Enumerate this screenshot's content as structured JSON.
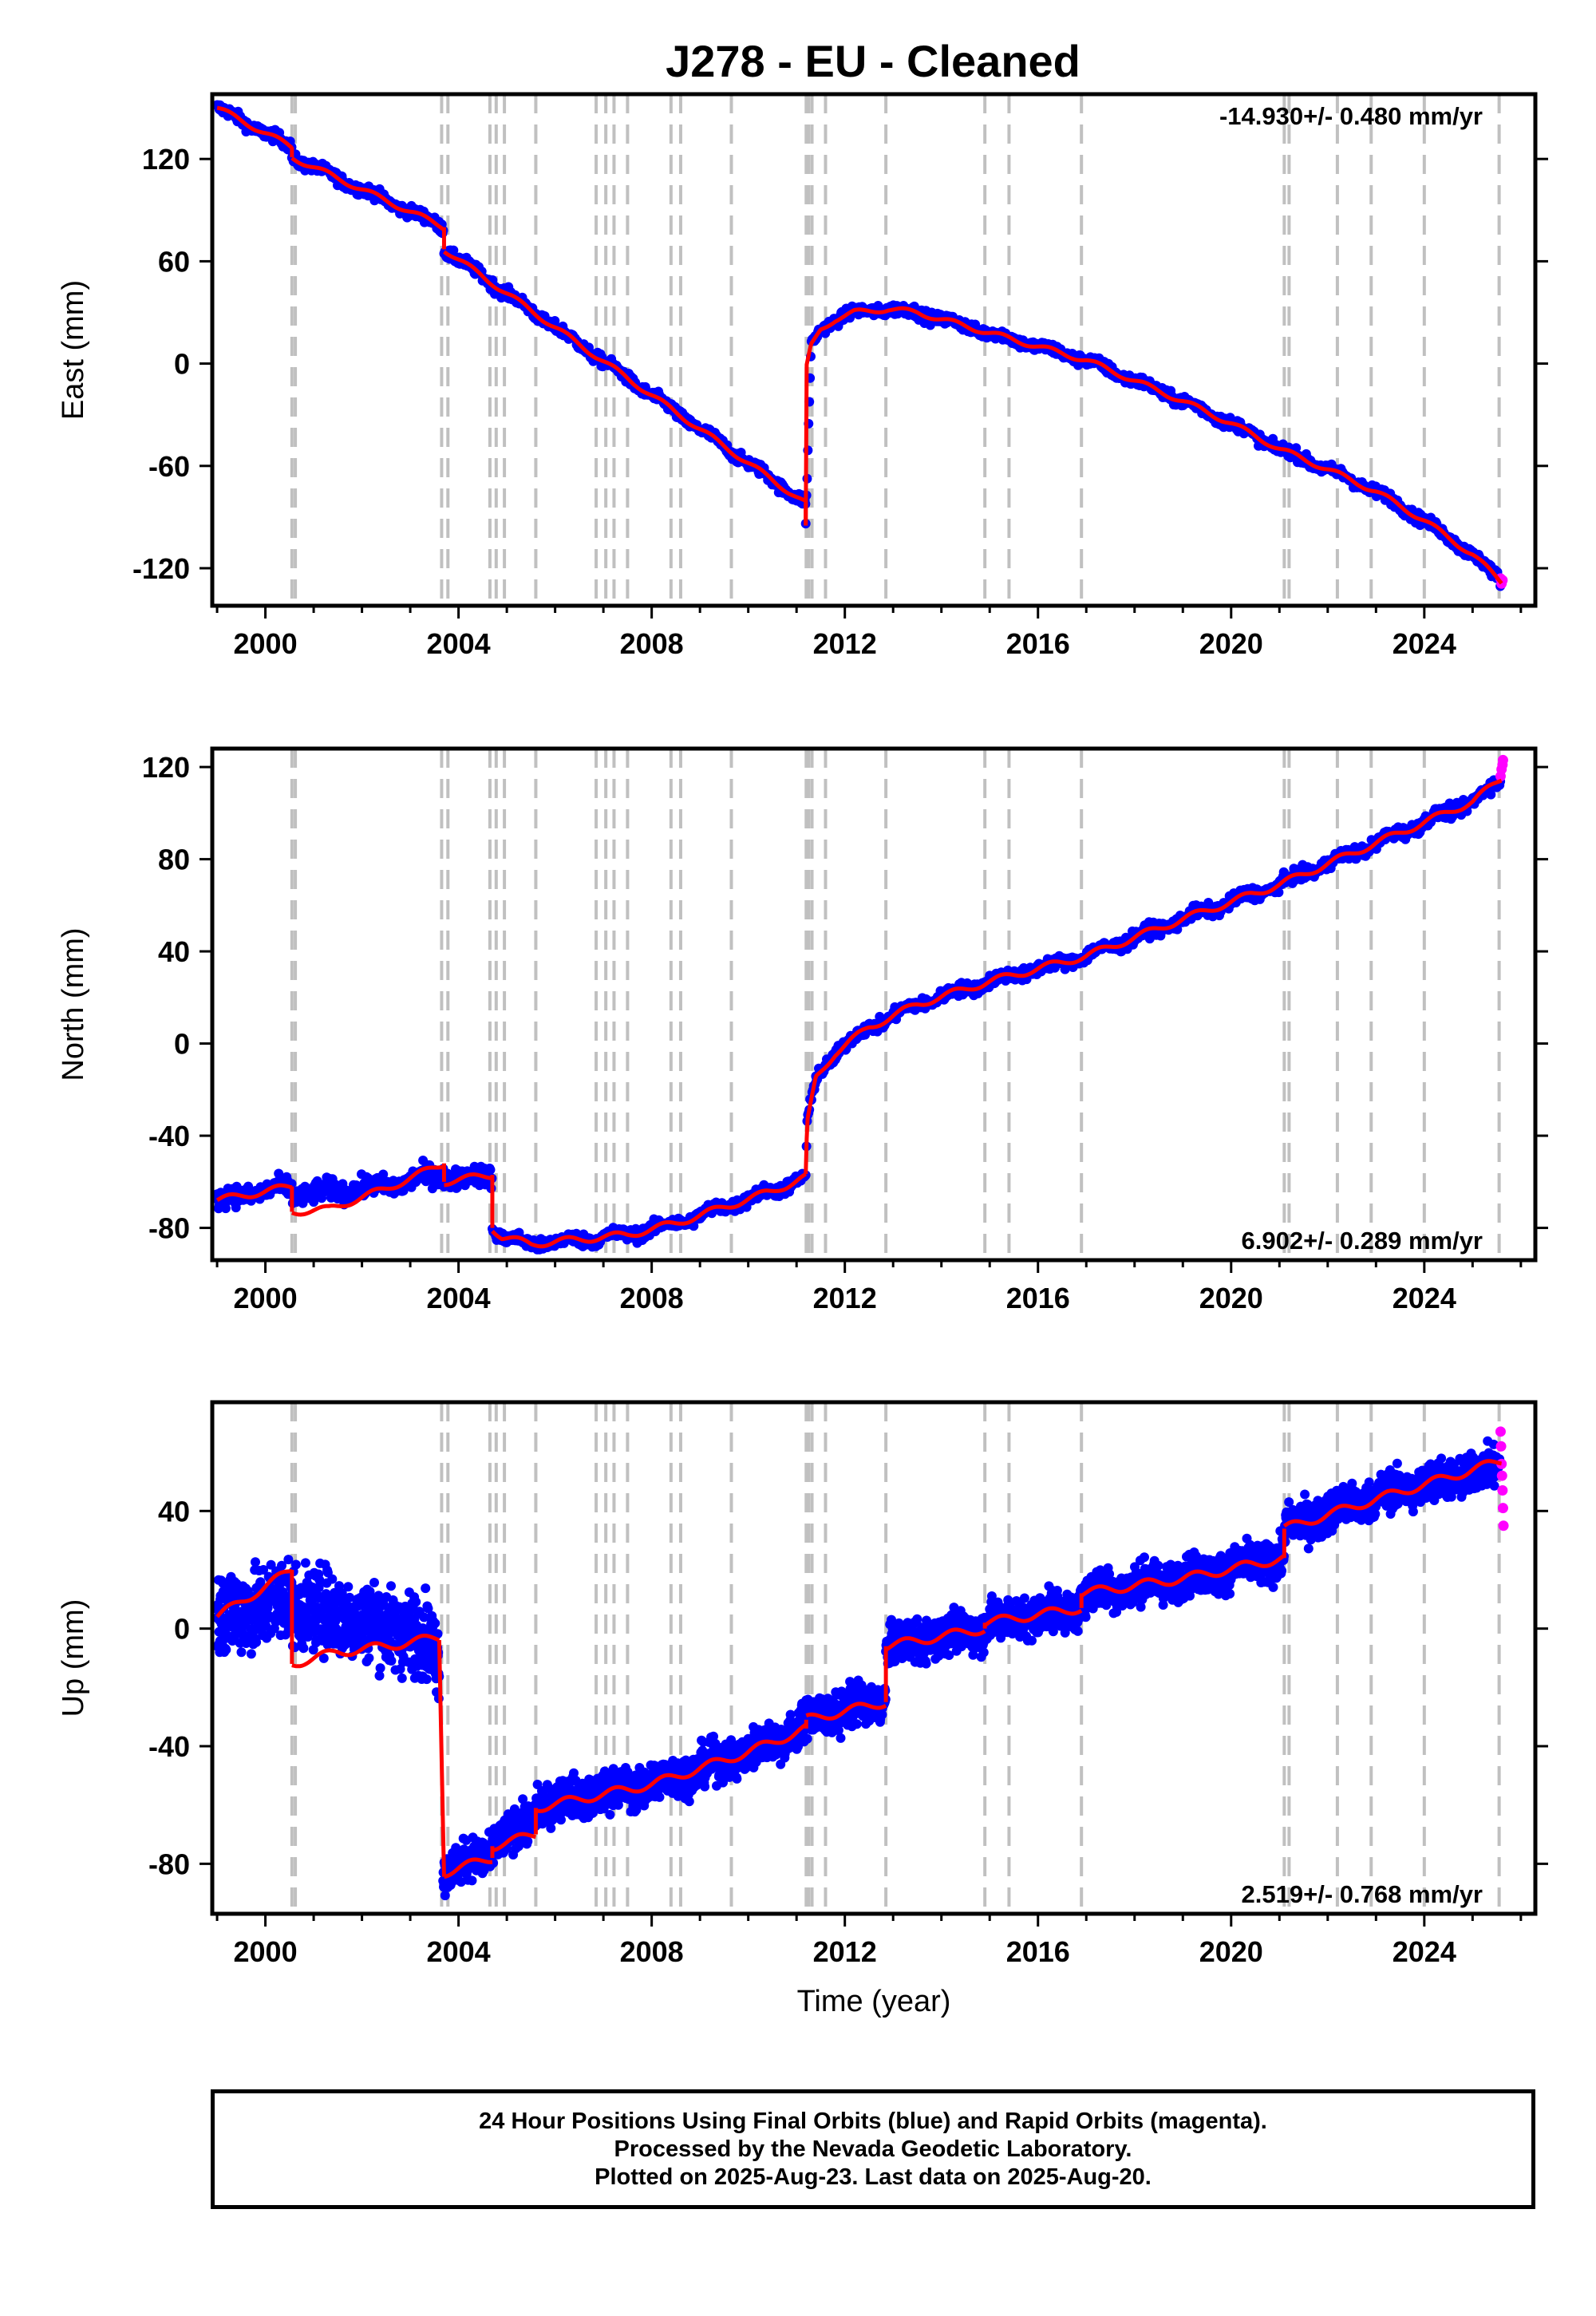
{
  "title": "J278  - EU - Cleaned",
  "caption": {
    "lines": [
      "24 Hour Positions Using Final Orbits (blue) and Rapid Orbits (magenta).",
      "Processed by the Nevada Geodetic Laboratory.",
      "Plotted on 2025-Aug-23. Last data on 2025-Aug-20."
    ]
  },
  "colors": {
    "final_points": "#0000ff",
    "rapid_points": "#ff00ff",
    "model": "#ff0000",
    "event_lines": "#c0c0c0",
    "frame": "#000000"
  },
  "chart_data": [
    {
      "type": "scatter",
      "name": "east",
      "ylabel": "East (mm)",
      "xlabel": "",
      "rate_label": "-14.930+/- 0.480 mm/yr",
      "rate_position": "top-right",
      "xlim": [
        1998.9,
        2026.3
      ],
      "ylim": [
        -142,
        158
      ],
      "x_ticks": [
        2000,
        2004,
        2008,
        2012,
        2016,
        2020,
        2024
      ],
      "y_ticks": [
        -120,
        -60,
        0,
        60,
        120
      ],
      "y_tick_labels": [
        "-120",
        "-60",
        "0",
        "60",
        "120"
      ],
      "x_tick_labels": [
        "2000",
        "2004",
        "2008",
        "2012",
        "2016",
        "2020",
        "2024"
      ],
      "grid": false,
      "event_lines": [
        2000.55,
        2000.62,
        2003.65,
        2003.78,
        2004.65,
        2004.78,
        2004.95,
        2005.6,
        2006.85,
        2007.05,
        2007.22,
        2007.5,
        2008.4,
        2008.6,
        2009.65,
        2011.2,
        2011.25,
        2011.32,
        2011.6,
        2012.85,
        2014.9,
        2015.4,
        2016.9,
        2021.1,
        2021.2,
        2022.2,
        2022.9,
        2024.0,
        2025.55
      ],
      "model_segments": [
        {
          "x": [
            1999.0,
            2000.55
          ],
          "y": [
            150,
            127
          ]
        },
        {
          "x": [
            2000.55,
            2003.7
          ],
          "y": [
            121,
            80
          ]
        },
        {
          "x": [
            2003.7,
            2011.19
          ],
          "y": [
            67,
            -82
          ]
        },
        {
          "x": [
            2011.19,
            2011.21,
            2011.3,
            2011.5,
            2011.8,
            2012.2,
            2012.9,
            2013.5,
            2014.0,
            2015.0,
            2016.0,
            2017.0,
            2018.0,
            2019.0,
            2020.0,
            2021.0,
            2022.0,
            2023.0,
            2024.0,
            2025.0,
            2025.6
          ],
          "y": [
            -95,
            -2,
            10,
            20,
            26,
            30,
            32,
            30,
            26,
            18,
            10,
            2,
            -10,
            -22,
            -35,
            -50,
            -62,
            -75,
            -92,
            -112,
            -128
          ]
        }
      ],
      "final_series": [
        {
          "x": [
            1999.0,
            2000.55
          ],
          "y": [
            150,
            127
          ],
          "noise": 3,
          "step": 0.015
        },
        {
          "x": [
            2000.55,
            2003.7
          ],
          "y": [
            121,
            80
          ],
          "noise": 3,
          "step": 0.015
        },
        {
          "x": [
            2003.7,
            2011.19
          ],
          "y": [
            67,
            -82
          ],
          "noise": 3,
          "step": 0.015
        },
        {
          "x": [
            2011.19,
            2011.3,
            2011.5,
            2011.8,
            2012.2,
            2012.9,
            2013.5,
            2014.0,
            2015.0,
            2016.0,
            2017.0,
            2018.0,
            2019.0,
            2020.0,
            2021.0,
            2022.0,
            2023.0,
            2024.0,
            2025.0,
            2025.58
          ],
          "y": [
            -95,
            10,
            20,
            26,
            30,
            32,
            30,
            26,
            18,
            10,
            2,
            -10,
            -22,
            -35,
            -50,
            -62,
            -75,
            -92,
            -112,
            -127
          ],
          "noise": 3,
          "step": 0.015
        }
      ],
      "rapid_points": {
        "x": [
          2025.58,
          2025.6,
          2025.62
        ],
        "y": [
          -126,
          -129,
          -127
        ]
      }
    },
    {
      "type": "scatter",
      "name": "north",
      "ylabel": "North (mm)",
      "xlabel": "",
      "rate_label": "6.902+/- 0.289 mm/yr",
      "rate_position": "bottom-right",
      "xlim": [
        1998.9,
        2026.3
      ],
      "ylim": [
        -94,
        128
      ],
      "x_ticks": [
        2000,
        2004,
        2008,
        2012,
        2016,
        2020,
        2024
      ],
      "y_ticks": [
        -80,
        -40,
        0,
        40,
        80,
        120
      ],
      "y_tick_labels": [
        "-80",
        "-40",
        "0",
        "40",
        "80",
        "120"
      ],
      "x_tick_labels": [
        "2000",
        "2004",
        "2008",
        "2012",
        "2016",
        "2020",
        "2024"
      ],
      "grid": false,
      "event_lines": [
        2000.55,
        2000.62,
        2003.65,
        2003.78,
        2004.65,
        2004.78,
        2004.95,
        2005.6,
        2006.85,
        2007.05,
        2007.22,
        2007.5,
        2008.4,
        2008.6,
        2009.65,
        2011.2,
        2011.25,
        2011.32,
        2011.6,
        2012.85,
        2014.9,
        2015.4,
        2016.9,
        2021.1,
        2021.2,
        2022.2,
        2022.9,
        2024.0,
        2025.55
      ],
      "model_segments": [
        {
          "x": [
            1999.0,
            2000.55
          ],
          "y": [
            -68,
            -62
          ]
        },
        {
          "x": [
            2000.55,
            2001.3,
            2002.5,
            2003.7
          ],
          "y": [
            -73,
            -72,
            -63,
            -52
          ]
        },
        {
          "x": [
            2003.7,
            2004.7
          ],
          "y": [
            -60,
            -57
          ]
        },
        {
          "x": [
            2004.7,
            2004.9,
            2005.5,
            2006.5,
            2007.5,
            2008.5,
            2009.5,
            2010.5,
            2011.19
          ],
          "y": [
            -80,
            -84,
            -87,
            -85,
            -83,
            -78,
            -71,
            -64,
            -58
          ]
        },
        {
          "x": [
            2011.19,
            2011.22,
            2011.4,
            2011.8,
            2012.5,
            2013.5,
            2015.0,
            2017.0,
            2019.0,
            2021.0,
            2023.0,
            2025.0,
            2025.6
          ],
          "y": [
            -58,
            -35,
            -15,
            -4,
            7,
            17,
            27,
            38,
            54,
            69,
            87,
            105,
            115
          ]
        }
      ],
      "final_series": [
        {
          "x": [
            1999.0,
            2000.55
          ],
          "y": [
            -68,
            -62
          ],
          "noise": 4,
          "step": 0.015
        },
        {
          "x": [
            2000.55,
            2001.3,
            2002.5,
            2003.7
          ],
          "y": [
            -66,
            -64,
            -62,
            -56
          ],
          "noise": 4,
          "step": 0.015
        },
        {
          "x": [
            2003.7,
            2004.7
          ],
          "y": [
            -59,
            -57
          ],
          "noise": 4,
          "step": 0.015
        },
        {
          "x": [
            2004.7,
            2004.9,
            2005.5,
            2006.5,
            2007.5,
            2008.5,
            2009.5,
            2010.5,
            2011.19
          ],
          "y": [
            -80,
            -84,
            -87,
            -85,
            -83,
            -78,
            -71,
            -64,
            -58
          ],
          "noise": 2.5,
          "step": 0.015
        },
        {
          "x": [
            2011.19,
            2011.22,
            2011.4,
            2011.8,
            2012.5,
            2013.5,
            2015.0,
            2017.0,
            2019.0,
            2021.0,
            2023.0,
            2025.0,
            2025.58
          ],
          "y": [
            -58,
            -35,
            -15,
            -4,
            7,
            17,
            27,
            38,
            54,
            69,
            87,
            105,
            114
          ],
          "noise": 2.5,
          "step": 0.015
        }
      ],
      "rapid_points": {
        "x": [
          2025.58,
          2025.6,
          2025.62,
          2025.63
        ],
        "y": [
          116,
          119,
          121,
          123
        ]
      }
    },
    {
      "type": "scatter",
      "name": "up",
      "ylabel": "Up (mm)",
      "xlabel": "Time (year)",
      "rate_label": "2.519+/- 0.768 mm/yr",
      "rate_position": "bottom-right",
      "xlim": [
        1998.9,
        2026.3
      ],
      "ylim": [
        -97,
        77
      ],
      "x_ticks": [
        2000,
        2004,
        2008,
        2012,
        2016,
        2020,
        2024
      ],
      "y_ticks": [
        -80,
        -40,
        0,
        40
      ],
      "y_tick_labels": [
        "-80",
        "-40",
        "0",
        "40"
      ],
      "x_tick_labels": [
        "2000",
        "2004",
        "2008",
        "2012",
        "2016",
        "2020",
        "2024"
      ],
      "grid": false,
      "event_lines": [
        2000.55,
        2000.62,
        2003.65,
        2003.78,
        2004.65,
        2004.78,
        2004.95,
        2005.6,
        2006.85,
        2007.05,
        2007.22,
        2007.5,
        2008.4,
        2008.6,
        2009.65,
        2011.2,
        2011.25,
        2011.32,
        2011.6,
        2012.85,
        2014.9,
        2015.4,
        2016.9,
        2021.1,
        2021.2,
        2022.2,
        2022.9,
        2024.0,
        2025.55
      ],
      "model_segments": [
        {
          "x": [
            1999.0,
            2000.55
          ],
          "y": [
            4,
            20
          ]
        },
        {
          "x": [
            2000.55,
            2001.5,
            2002.5,
            2003.6
          ],
          "y": [
            -12,
            -8,
            -6,
            -3
          ]
        },
        {
          "x": [
            2003.6,
            2003.7
          ],
          "y": [
            -3,
            -83
          ]
        },
        {
          "x": [
            2003.7,
            2004.7
          ],
          "y": [
            -83,
            -78
          ]
        },
        {
          "x": [
            2004.7,
            2005.6
          ],
          "y": [
            -74,
            -70
          ]
        },
        {
          "x": [
            2005.6,
            2008.0,
            2010.0,
            2011.2
          ],
          "y": [
            -61,
            -53,
            -42,
            -34
          ]
        },
        {
          "x": [
            2011.2,
            2012.85
          ],
          "y": [
            -31,
            -25
          ]
        },
        {
          "x": [
            2012.85,
            2014.9
          ],
          "y": [
            -6,
            0
          ]
        },
        {
          "x": [
            2014.9,
            2016.9
          ],
          "y": [
            2,
            7
          ]
        },
        {
          "x": [
            2016.9,
            2019.0,
            2021.1
          ],
          "y": [
            12,
            17,
            24
          ]
        },
        {
          "x": [
            2021.1,
            2023.0,
            2025.6
          ],
          "y": [
            34,
            44,
            57
          ]
        }
      ],
      "final_series": [
        {
          "x": [
            1999.0,
            2000.55
          ],
          "y": [
            4,
            10
          ],
          "noise": 13,
          "step": 0.006
        },
        {
          "x": [
            2000.55,
            2002.0,
            2003.3,
            2003.6
          ],
          "y": [
            8,
            3,
            -3,
            -10
          ],
          "noise": 12,
          "step": 0.006
        },
        {
          "x": [
            2003.68,
            2004.7
          ],
          "y": [
            -82,
            -77
          ],
          "noise": 6,
          "step": 0.006
        },
        {
          "x": [
            2004.7,
            2005.6
          ],
          "y": [
            -73,
            -65
          ],
          "noise": 6,
          "step": 0.006
        },
        {
          "x": [
            2005.6,
            2008.0,
            2010.0,
            2011.2
          ],
          "y": [
            -60,
            -53,
            -42,
            -33
          ],
          "noise": 6,
          "step": 0.006
        },
        {
          "x": [
            2011.2,
            2012.85
          ],
          "y": [
            -31,
            -24
          ],
          "noise": 6,
          "step": 0.006
        },
        {
          "x": [
            2012.85,
            2014.9
          ],
          "y": [
            -6,
            0
          ],
          "noise": 6,
          "step": 0.006
        },
        {
          "x": [
            2014.9,
            2016.9
          ],
          "y": [
            2,
            7
          ],
          "noise": 6,
          "step": 0.006
        },
        {
          "x": [
            2016.9,
            2019.0,
            2021.1
          ],
          "y": [
            12,
            17,
            24
          ],
          "noise": 6,
          "step": 0.006
        },
        {
          "x": [
            2021.1,
            2023.0,
            2025.58
          ],
          "y": [
            34,
            45,
            55
          ],
          "noise": 6,
          "step": 0.006
        }
      ],
      "rapid_points": {
        "x": [
          2025.58,
          2025.59,
          2025.6,
          2025.61,
          2025.62,
          2025.63,
          2025.64
        ],
        "y": [
          67,
          62,
          56,
          52,
          47,
          41,
          35
        ]
      }
    }
  ]
}
